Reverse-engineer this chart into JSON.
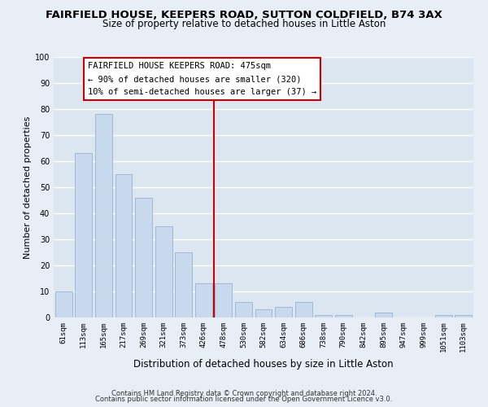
{
  "title": "FAIRFIELD HOUSE, KEEPERS ROAD, SUTTON COLDFIELD, B74 3AX",
  "subtitle": "Size of property relative to detached houses in Little Aston",
  "xlabel": "Distribution of detached houses by size in Little Aston",
  "ylabel": "Number of detached properties",
  "categories": [
    "61sqm",
    "113sqm",
    "165sqm",
    "217sqm",
    "269sqm",
    "321sqm",
    "373sqm",
    "426sqm",
    "478sqm",
    "530sqm",
    "582sqm",
    "634sqm",
    "686sqm",
    "738sqm",
    "790sqm",
    "842sqm",
    "895sqm",
    "947sqm",
    "999sqm",
    "1051sqm",
    "1103sqm"
  ],
  "values": [
    10,
    63,
    78,
    55,
    46,
    35,
    25,
    13,
    13,
    6,
    3,
    4,
    6,
    1,
    1,
    0,
    2,
    0,
    0,
    1,
    1
  ],
  "bar_color": "#c8d9ed",
  "bar_edge_color": "#a0b8d8",
  "vline_color": "#cc0000",
  "annotation_title": "FAIRFIELD HOUSE KEEPERS ROAD: 475sqm",
  "annotation_line1": "← 90% of detached houses are smaller (320)",
  "annotation_line2": "10% of semi-detached houses are larger (37) →",
  "annotation_box_color": "#ffffff",
  "annotation_box_edge": "#cc0000",
  "ylim": [
    0,
    100
  ],
  "footer1": "Contains HM Land Registry data © Crown copyright and database right 2024.",
  "footer2": "Contains public sector information licensed under the Open Government Licence v3.0.",
  "bg_color": "#e8eef5",
  "plot_bg_color": "#dce6f0",
  "grid_color": "#ffffff",
  "title_fontsize": 9.5,
  "subtitle_fontsize": 8.5,
  "tick_fontsize": 6.5,
  "ylabel_fontsize": 8.0,
  "xlabel_fontsize": 8.5,
  "footer_fontsize": 6.0,
  "annotation_fontsize": 7.5
}
